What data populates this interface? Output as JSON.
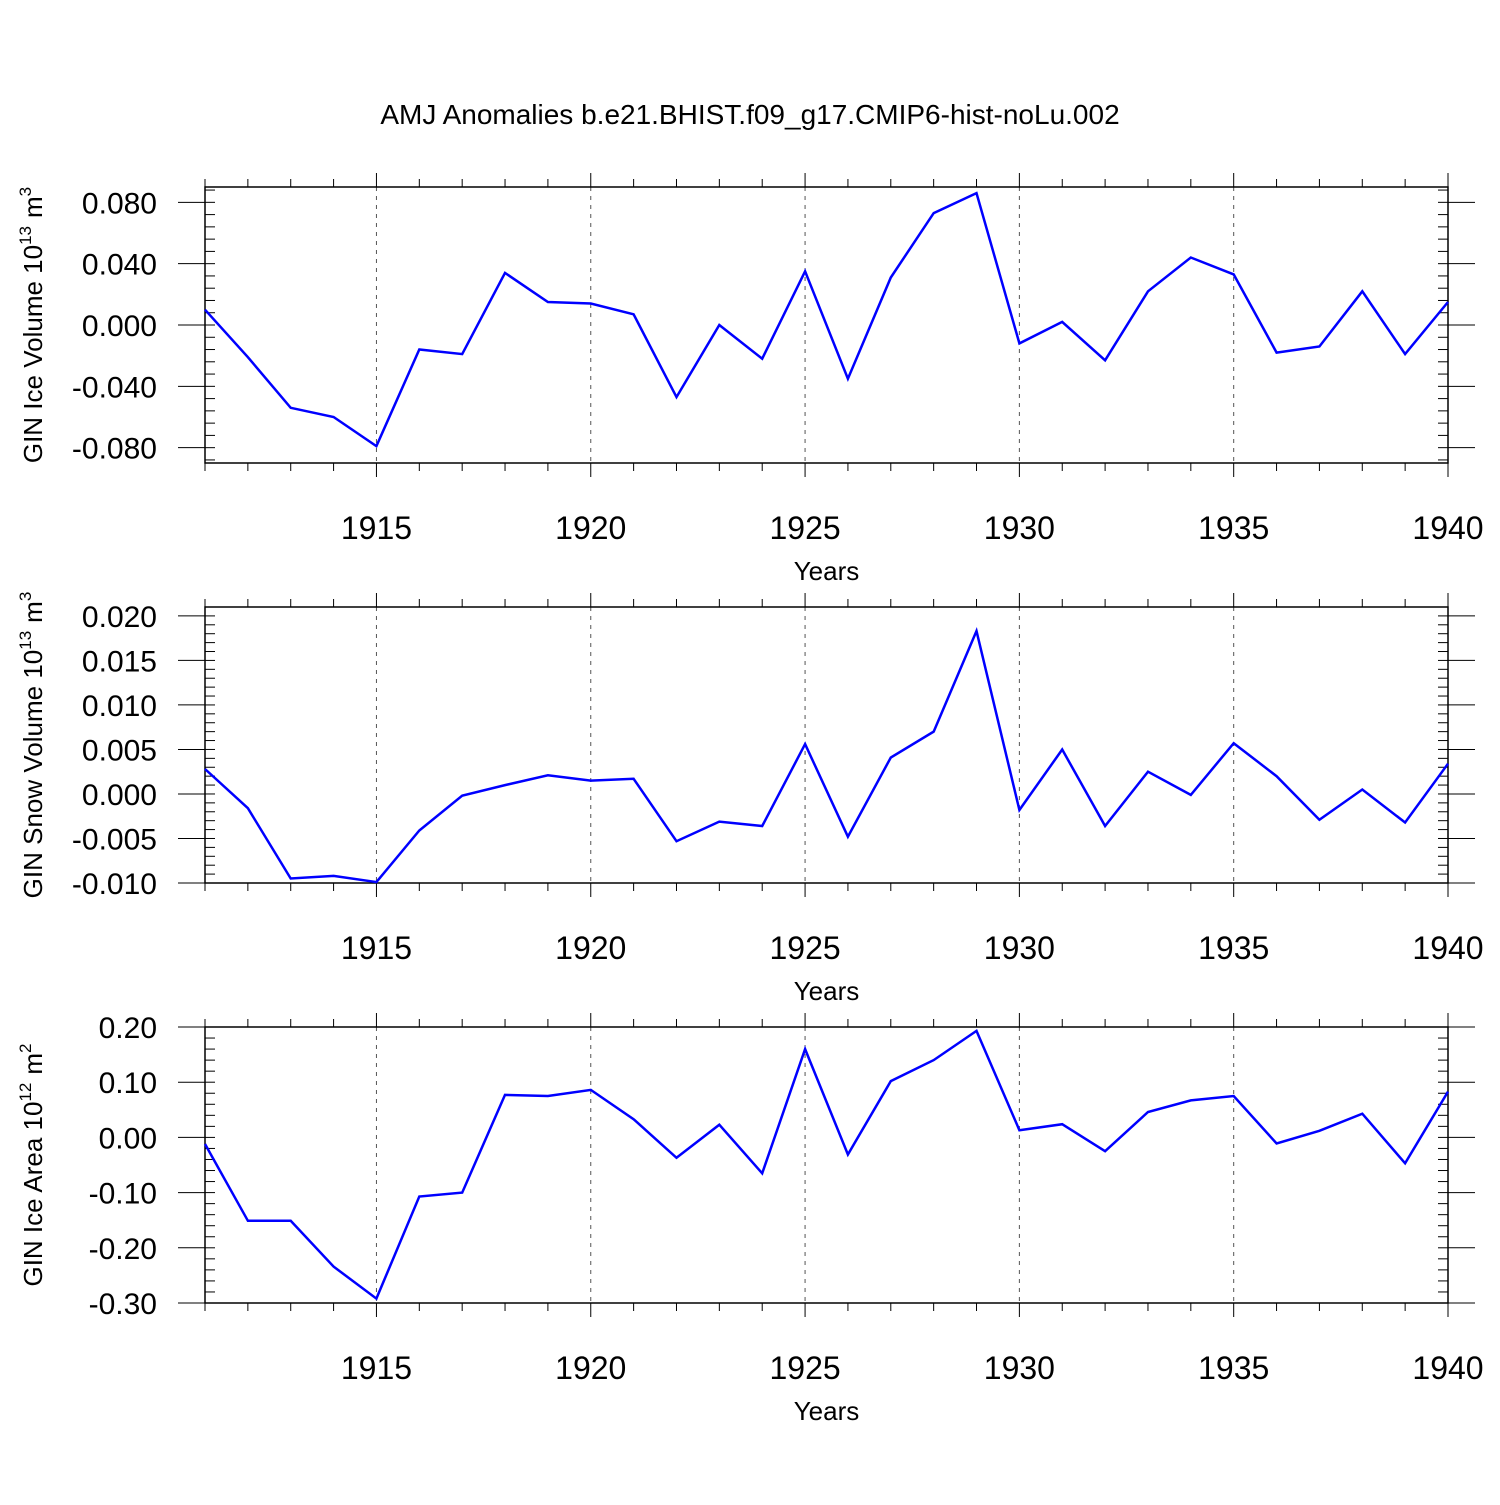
{
  "title": "AMJ Anomalies b.e21.BHIST.f09_g17.CMIP6-hist-noLu.002",
  "line_color": "#0000ff",
  "chart_data": [
    {
      "type": "line",
      "ylabel": "GIN Ice Volume 10",
      "ylabel_exp": "13",
      "ylabel_unit": "m",
      "ylabel_unit_exp": "3",
      "xlabel": "Years",
      "xlim": [
        1911,
        1940
      ],
      "ylim": [
        -0.09,
        0.09
      ],
      "yticks": [
        -0.08,
        -0.04,
        0.0,
        0.04,
        0.08
      ],
      "ytick_labels": [
        "-0.080",
        "-0.040",
        "0.000",
        "0.040",
        "0.080"
      ],
      "xticks": [
        1915,
        1920,
        1925,
        1930,
        1935,
        1940
      ],
      "xtick_labels": [
        "1915",
        "1920",
        "1925",
        "1930",
        "1935",
        "1940"
      ],
      "grid_x": [
        1915,
        1920,
        1925,
        1930,
        1935
      ],
      "x": [
        1911,
        1912,
        1913,
        1914,
        1915,
        1916,
        1917,
        1918,
        1919,
        1920,
        1921,
        1922,
        1923,
        1924,
        1925,
        1926,
        1927,
        1928,
        1929,
        1930,
        1931,
        1932,
        1933,
        1934,
        1935,
        1936,
        1937,
        1938,
        1939,
        1940
      ],
      "values": [
        0.01,
        -0.021,
        -0.054,
        -0.06,
        -0.079,
        -0.016,
        -0.019,
        0.034,
        0.015,
        0.014,
        0.007,
        -0.047,
        0.0,
        -0.022,
        0.035,
        -0.035,
        0.031,
        0.073,
        0.086,
        -0.012,
        0.002,
        -0.023,
        0.022,
        0.044,
        0.033,
        -0.018,
        -0.014,
        0.022,
        -0.019,
        0.015
      ]
    },
    {
      "type": "line",
      "ylabel": "GIN Snow Volume 10",
      "ylabel_exp": "13",
      "ylabel_unit": "m",
      "ylabel_unit_exp": "3",
      "xlabel": "Years",
      "xlim": [
        1911,
        1940
      ],
      "ylim": [
        -0.01,
        0.021
      ],
      "yticks": [
        -0.01,
        -0.005,
        0.0,
        0.005,
        0.01,
        0.015,
        0.02
      ],
      "ytick_labels": [
        "-0.010",
        "-0.005",
        "0.000",
        "0.005",
        "0.010",
        "0.015",
        "0.020"
      ],
      "xticks": [
        1915,
        1920,
        1925,
        1930,
        1935,
        1940
      ],
      "xtick_labels": [
        "1915",
        "1920",
        "1925",
        "1930",
        "1935",
        "1940"
      ],
      "grid_x": [
        1915,
        1920,
        1925,
        1930,
        1935
      ],
      "x": [
        1911,
        1912,
        1913,
        1914,
        1915,
        1916,
        1917,
        1918,
        1919,
        1920,
        1921,
        1922,
        1923,
        1924,
        1925,
        1926,
        1927,
        1928,
        1929,
        1930,
        1931,
        1932,
        1933,
        1934,
        1935,
        1936,
        1937,
        1938,
        1939,
        1940
      ],
      "values": [
        0.0028,
        -0.0016,
        -0.0095,
        -0.0092,
        -0.0099,
        -0.0041,
        -0.0002,
        0.001,
        0.0021,
        0.0015,
        0.0017,
        -0.0053,
        -0.0031,
        -0.0036,
        0.0056,
        -0.0048,
        0.0041,
        0.007,
        0.0183,
        -0.0018,
        0.005,
        -0.0036,
        0.0025,
        -0.0001,
        0.0057,
        0.002,
        -0.0029,
        0.0005,
        -0.0032,
        0.0034
      ]
    },
    {
      "type": "line",
      "ylabel": "GIN Ice Area 10",
      "ylabel_exp": "12",
      "ylabel_unit": "m",
      "ylabel_unit_exp": "2",
      "xlabel": "Years",
      "xlim": [
        1911,
        1940
      ],
      "ylim": [
        -0.3,
        0.2
      ],
      "yticks": [
        -0.3,
        -0.2,
        -0.1,
        0.0,
        0.1,
        0.2
      ],
      "ytick_labels": [
        "-0.30",
        "-0.20",
        "-0.10",
        "0.00",
        "0.10",
        "0.20"
      ],
      "xticks": [
        1915,
        1920,
        1925,
        1930,
        1935,
        1940
      ],
      "xtick_labels": [
        "1915",
        "1920",
        "1925",
        "1930",
        "1935",
        "1940"
      ],
      "grid_x": [
        1915,
        1920,
        1925,
        1930,
        1935
      ],
      "x": [
        1911,
        1912,
        1913,
        1914,
        1915,
        1916,
        1917,
        1918,
        1919,
        1920,
        1921,
        1922,
        1923,
        1924,
        1925,
        1926,
        1927,
        1928,
        1929,
        1930,
        1931,
        1932,
        1933,
        1934,
        1935,
        1936,
        1937,
        1938,
        1939,
        1940
      ],
      "values": [
        -0.012,
        -0.151,
        -0.151,
        -0.234,
        -0.292,
        -0.107,
        -0.1,
        0.077,
        0.075,
        0.086,
        0.033,
        -0.037,
        0.023,
        -0.065,
        0.16,
        -0.031,
        0.102,
        0.14,
        0.193,
        0.013,
        0.024,
        -0.025,
        0.046,
        0.067,
        0.075,
        -0.011,
        0.012,
        0.043,
        -0.047,
        0.083
      ]
    }
  ]
}
